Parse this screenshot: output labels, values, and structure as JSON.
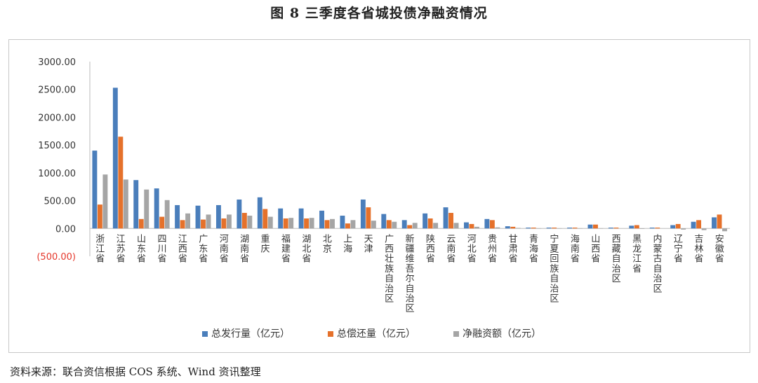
{
  "figure": {
    "title": "图 8   三季度各省城投债净融资情况",
    "source": "资料来源：联合资信根据 COS 系统、Wind 资讯整理"
  },
  "chart_data": {
    "type": "bar",
    "title": "",
    "xlabel": "",
    "ylabel": "",
    "ylim": [
      -500,
      3000
    ],
    "yticks": [
      3000,
      2500,
      2000,
      1500,
      1000,
      500,
      0,
      -500
    ],
    "ytick_labels": [
      "3000.00",
      "2500.00",
      "2000.00",
      "1500.00",
      "1000.00",
      "500.00",
      "0.00",
      "(500.00)"
    ],
    "grid": false,
    "legend_position": "bottom",
    "categories": [
      "浙江省",
      "江苏省",
      "山东省",
      "四川省",
      "江西省",
      "广东省",
      "河南省",
      "湖南省",
      "重庆",
      "福建省",
      "湖北省",
      "北京",
      "上海",
      "天津",
      "广西壮族自治区",
      "新疆维吾尔自治区",
      "陕西省",
      "云南省",
      "河北省",
      "贵州省",
      "甘肃省",
      "青海省",
      "宁夏回族自治区",
      "海南省",
      "山西省",
      "西藏自治区",
      "黑龙江省",
      "内蒙古自治区",
      "辽宁省",
      "吉林省",
      "安徽省"
    ],
    "series": [
      {
        "name": "总发行量（亿元）",
        "color": "#4a7ebb",
        "values": [
          1400,
          2530,
          870,
          720,
          420,
          410,
          420,
          520,
          560,
          360,
          360,
          320,
          230,
          520,
          260,
          150,
          270,
          380,
          110,
          170,
          40,
          15,
          15,
          15,
          70,
          15,
          50,
          15,
          60,
          120,
          200
        ]
      },
      {
        "name": "总偿还量（亿元）",
        "color": "#e5712b",
        "values": [
          430,
          1650,
          170,
          210,
          150,
          160,
          180,
          280,
          350,
          180,
          180,
          150,
          90,
          380,
          150,
          60,
          180,
          280,
          80,
          150,
          30,
          15,
          15,
          15,
          70,
          15,
          60,
          15,
          80,
          150,
          250
        ]
      },
      {
        "name": "净融资额（亿元）",
        "color": "#a5a5a5",
        "values": [
          970,
          880,
          700,
          510,
          270,
          250,
          250,
          230,
          210,
          190,
          190,
          170,
          150,
          140,
          120,
          100,
          100,
          100,
          30,
          20,
          10,
          5,
          5,
          5,
          5,
          0,
          -5,
          0,
          -20,
          -30,
          -50
        ]
      }
    ]
  }
}
